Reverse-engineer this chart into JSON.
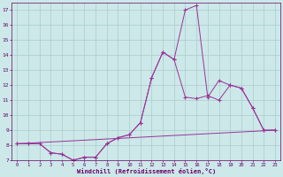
{
  "background_color": "#cce8e8",
  "grid_color": "#aacccc",
  "line_color": "#993399",
  "marker": "+",
  "xlabel": "Windchill (Refroidissement éolien,°C)",
  "xlabel_color": "#660066",
  "tick_color": "#660066",
  "xlim": [
    -0.5,
    23.5
  ],
  "ylim": [
    7,
    17.5
  ],
  "yticks": [
    7,
    8,
    9,
    10,
    11,
    12,
    13,
    14,
    15,
    16,
    17
  ],
  "xticks": [
    0,
    1,
    2,
    3,
    4,
    5,
    6,
    7,
    8,
    9,
    10,
    11,
    12,
    13,
    14,
    15,
    16,
    17,
    18,
    19,
    20,
    21,
    22,
    23
  ],
  "line1_x": [
    0,
    1,
    2,
    3,
    4,
    5,
    6,
    7,
    8,
    9,
    10,
    11,
    12,
    13,
    14,
    15,
    16,
    17,
    18,
    19,
    20,
    21,
    22,
    23
  ],
  "line1_y": [
    8.1,
    8.1,
    8.1,
    7.5,
    7.4,
    7.0,
    7.2,
    7.2,
    8.1,
    8.5,
    8.7,
    9.5,
    12.5,
    14.2,
    13.7,
    11.2,
    11.1,
    11.3,
    11.0,
    12.0,
    11.8,
    10.5,
    9.0,
    9.0
  ],
  "line2_x": [
    0,
    1,
    2,
    3,
    4,
    5,
    6,
    7,
    8,
    9,
    10,
    11,
    12,
    13,
    14,
    15,
    16,
    17,
    18,
    19,
    20,
    21,
    22,
    23
  ],
  "line2_y": [
    8.1,
    8.1,
    8.1,
    7.5,
    7.4,
    7.0,
    7.2,
    7.2,
    8.1,
    8.5,
    8.7,
    9.5,
    12.5,
    14.2,
    13.7,
    17.0,
    17.3,
    11.2,
    12.3,
    12.0,
    11.8,
    10.5,
    9.0,
    9.0
  ],
  "line3_x": [
    0,
    23
  ],
  "line3_y": [
    8.1,
    9.0
  ]
}
